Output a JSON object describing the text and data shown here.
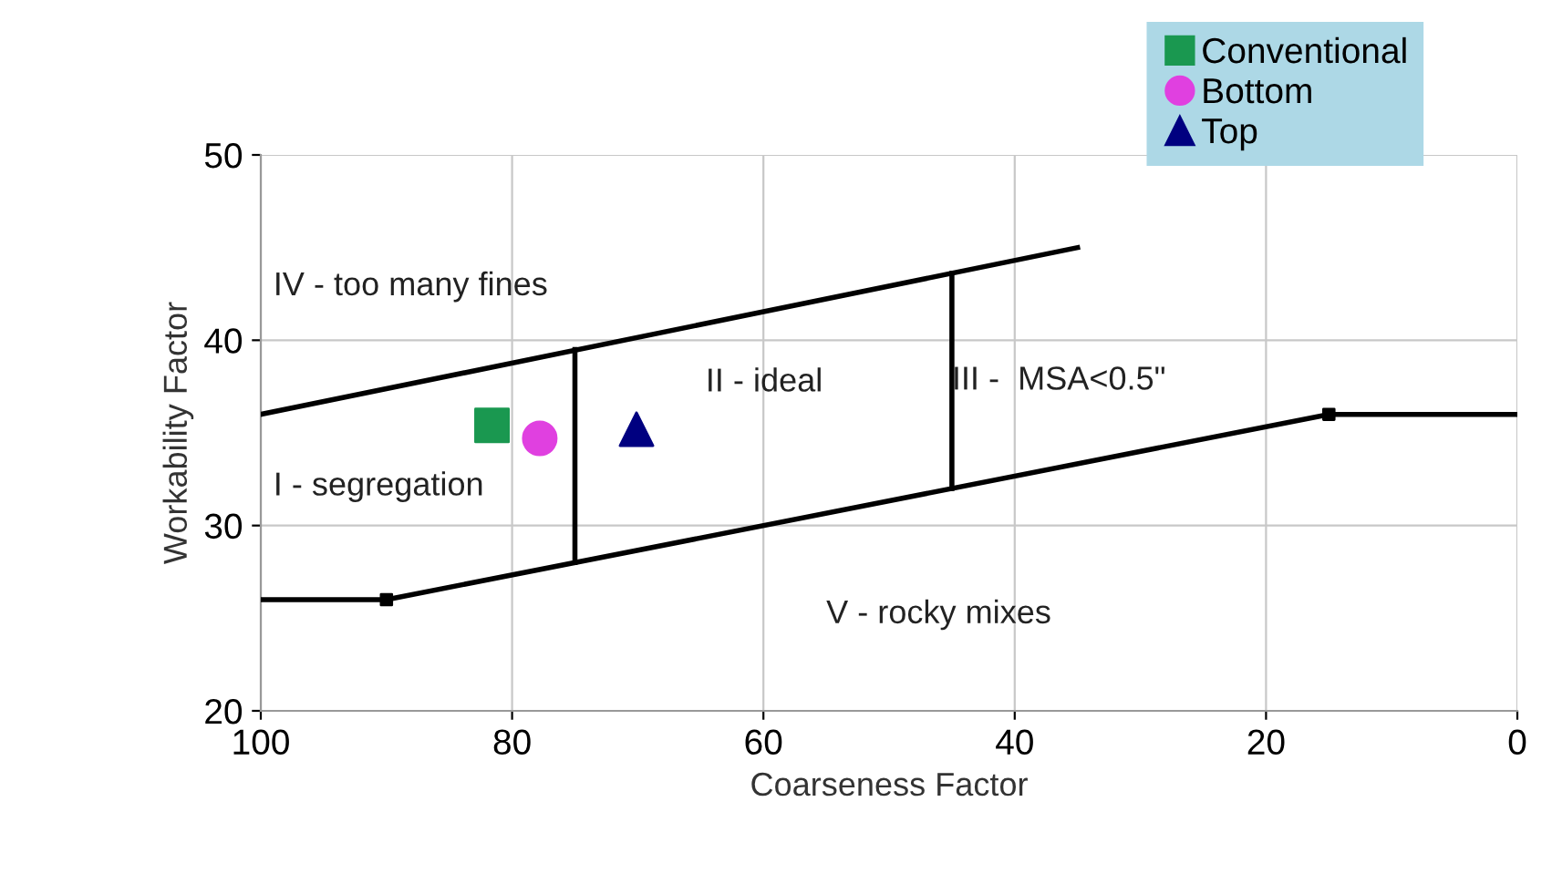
{
  "chart_data": {
    "type": "scatter",
    "xlabel": "Coarseness Factor",
    "ylabel": "Workability Factor",
    "xlim": [
      100,
      0
    ],
    "xticks": [
      100,
      80,
      60,
      40,
      20,
      0
    ],
    "ylim": [
      20,
      50
    ],
    "yticks": [
      20,
      30,
      40,
      50
    ],
    "grid": true,
    "legend": "top right",
    "series": [
      {
        "name": "Conventional",
        "marker": "square",
        "color": "#1a9850",
        "x": [
          81.6
        ],
        "values": [
          35.4
        ]
      },
      {
        "name": "Bottom",
        "marker": "circle",
        "color": "#e040e0",
        "x": [
          77.8
        ],
        "values": [
          34.7
        ]
      },
      {
        "name": "Top",
        "marker": "triangle",
        "color": "#000080",
        "x": [
          70.1
        ],
        "values": [
          35.2
        ]
      },
      {
        "type": "line",
        "marker": "none",
        "color": "#000000",
        "x": [
          100,
          35
        ],
        "values": [
          36,
          45
        ]
      },
      {
        "type": "line",
        "marker": "none",
        "color": "#000000",
        "x": [
          100,
          90,
          15,
          0
        ],
        "values": [
          26,
          26,
          36,
          36
        ]
      },
      {
        "type": "scatter",
        "marker": "square",
        "color": "#000000",
        "x": [
          90,
          15
        ],
        "values": [
          26,
          36
        ]
      },
      {
        "type": "line",
        "marker": "none",
        "color": "#000000",
        "x": [
          75,
          75
        ],
        "values": [
          28,
          39.5
        ]
      },
      {
        "type": "line",
        "marker": "none",
        "color": "#000000",
        "x": [
          45,
          45
        ],
        "values": [
          32,
          43.6
        ]
      }
    ],
    "annotations": [
      "IV - too many fines",
      "I - segregation",
      "II - ideal",
      {
        "text": "III -  MSA<0.5\"",
        "x": 45,
        "y": 37.8
      },
      "V - rocky mixes"
    ]
  }
}
